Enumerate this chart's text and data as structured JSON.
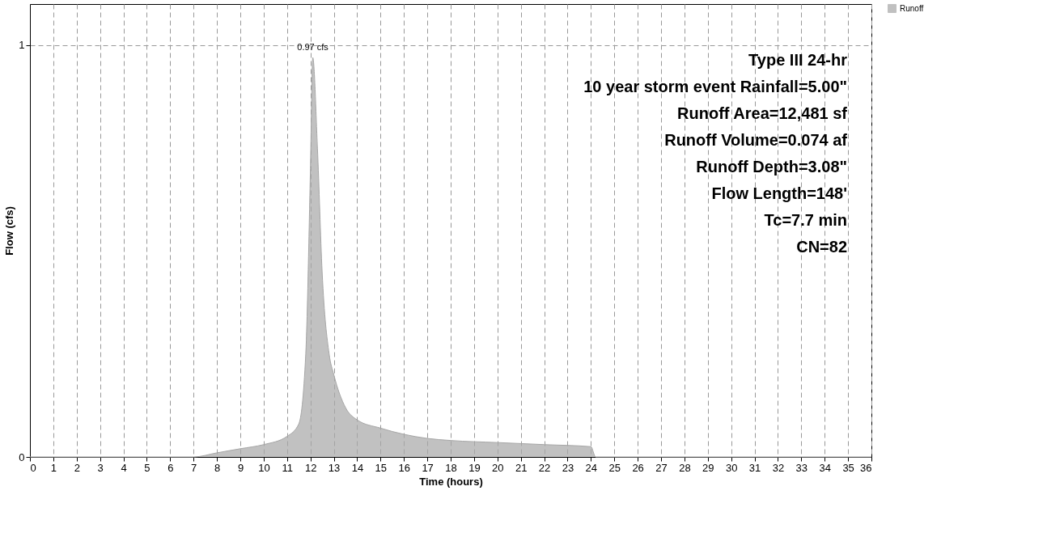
{
  "chart_data": {
    "type": "area",
    "xlabel": "Time  (hours)",
    "ylabel": "Flow  (cfs)",
    "series": [
      {
        "name": "Runoff",
        "color": "#a6a6a6",
        "x": [
          0,
          7,
          8,
          9,
          10,
          11,
          11.5,
          11.8,
          12.0,
          12.1,
          12.3,
          12.5,
          12.8,
          13,
          13.5,
          14,
          15,
          16,
          17,
          18,
          20,
          22,
          24,
          24.2,
          25,
          36
        ],
        "values": [
          0,
          0,
          0.01,
          0.02,
          0.03,
          0.05,
          0.08,
          0.25,
          0.7,
          0.97,
          0.75,
          0.45,
          0.25,
          0.2,
          0.12,
          0.09,
          0.07,
          0.055,
          0.045,
          0.04,
          0.035,
          0.03,
          0.025,
          0,
          0,
          0
        ]
      }
    ],
    "xlim": [
      0,
      36
    ],
    "xticks": [
      0,
      1,
      2,
      3,
      4,
      5,
      6,
      7,
      8,
      9,
      10,
      11,
      12,
      13,
      14,
      15,
      16,
      17,
      18,
      19,
      20,
      21,
      22,
      23,
      24,
      25,
      26,
      27,
      28,
      29,
      30,
      31,
      32,
      33,
      34,
      35,
      36
    ],
    "ylim": [
      0,
      1.1
    ],
    "yticks": [
      0,
      1
    ],
    "grid": true,
    "legend": "top right",
    "annotations": [
      {
        "text": "0.97 cfs",
        "x": 12.1,
        "y": 0.97
      },
      "Type III 24-hr",
      "10 year storm event Rainfall=5.00\"",
      "Runoff Area=12,481 sf",
      "Runoff Volume=0.074 af",
      "Runoff Depth=3.08\"",
      "Flow Length=148'",
      "Tc=7.7 min",
      "CN=82"
    ]
  }
}
